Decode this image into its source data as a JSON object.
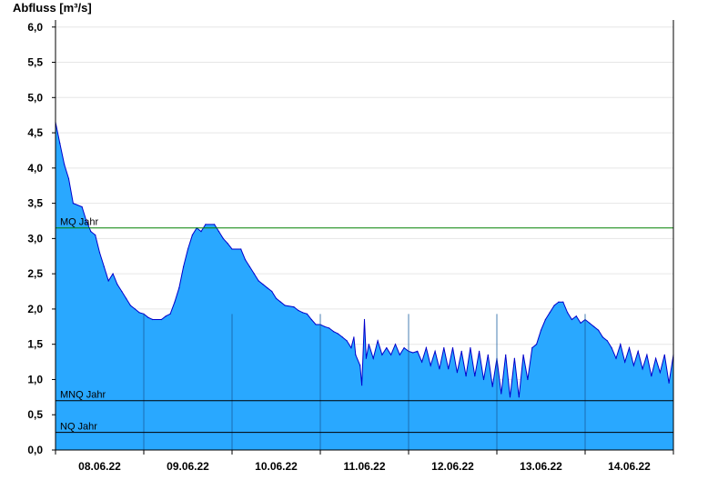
{
  "chart_data": {
    "type": "area",
    "ylabel": "Abfluss [m³/s]",
    "xlabel": "",
    "title": "",
    "ylim": [
      0,
      6.1
    ],
    "xlim": [
      0,
      7
    ],
    "grid": true,
    "yticks": [
      {
        "value": 0.0,
        "label": "0,0"
      },
      {
        "value": 0.5,
        "label": "0,5"
      },
      {
        "value": 1.0,
        "label": "1,0"
      },
      {
        "value": 1.5,
        "label": "1,5"
      },
      {
        "value": 2.0,
        "label": "2,0"
      },
      {
        "value": 2.5,
        "label": "2,5"
      },
      {
        "value": 3.0,
        "label": "3,0"
      },
      {
        "value": 3.5,
        "label": "3,5"
      },
      {
        "value": 4.0,
        "label": "4,0"
      },
      {
        "value": 4.5,
        "label": "4,5"
      },
      {
        "value": 5.0,
        "label": "5,0"
      },
      {
        "value": 5.5,
        "label": "5,5"
      },
      {
        "value": 6.0,
        "label": "6,0"
      }
    ],
    "xticks": [
      {
        "value": 0.5,
        "label": "08.06.22"
      },
      {
        "value": 1.5,
        "label": "09.06.22"
      },
      {
        "value": 2.5,
        "label": "10.06.22"
      },
      {
        "value": 3.5,
        "label": "11.06.22"
      },
      {
        "value": 4.5,
        "label": "12.06.22"
      },
      {
        "value": 5.5,
        "label": "13.06.22"
      },
      {
        "value": 6.5,
        "label": "14.06.22"
      }
    ],
    "day_dividers": [
      1,
      2,
      3,
      4,
      5,
      6
    ],
    "reference_lines": [
      {
        "name": "MQ Jahr",
        "value": 3.15,
        "color": "#008000"
      },
      {
        "name": "MNQ Jahr",
        "value": 0.7,
        "color": "#000000"
      },
      {
        "name": "NQ Jahr",
        "value": 0.25,
        "color": "#000000"
      }
    ],
    "series": [
      {
        "fill_color": "#29a8ff",
        "line_color": "#0000cc",
        "points": [
          [
            0.0,
            4.65
          ],
          [
            0.05,
            4.35
          ],
          [
            0.1,
            4.05
          ],
          [
            0.15,
            3.85
          ],
          [
            0.2,
            3.5
          ],
          [
            0.3,
            3.45
          ],
          [
            0.35,
            3.25
          ],
          [
            0.4,
            3.1
          ],
          [
            0.45,
            3.05
          ],
          [
            0.5,
            2.8
          ],
          [
            0.55,
            2.6
          ],
          [
            0.6,
            2.4
          ],
          [
            0.65,
            2.5
          ],
          [
            0.7,
            2.35
          ],
          [
            0.75,
            2.25
          ],
          [
            0.8,
            2.15
          ],
          [
            0.85,
            2.05
          ],
          [
            0.9,
            2.0
          ],
          [
            0.95,
            1.95
          ],
          [
            1.0,
            1.93
          ],
          [
            1.05,
            1.88
          ],
          [
            1.1,
            1.85
          ],
          [
            1.2,
            1.85
          ],
          [
            1.25,
            1.9
          ],
          [
            1.3,
            1.93
          ],
          [
            1.35,
            2.1
          ],
          [
            1.4,
            2.3
          ],
          [
            1.45,
            2.6
          ],
          [
            1.5,
            2.85
          ],
          [
            1.55,
            3.05
          ],
          [
            1.6,
            3.15
          ],
          [
            1.65,
            3.1
          ],
          [
            1.7,
            3.2
          ],
          [
            1.8,
            3.2
          ],
          [
            1.85,
            3.1
          ],
          [
            1.9,
            3.0
          ],
          [
            1.95,
            2.93
          ],
          [
            2.0,
            2.85
          ],
          [
            2.1,
            2.85
          ],
          [
            2.15,
            2.7
          ],
          [
            2.2,
            2.6
          ],
          [
            2.25,
            2.5
          ],
          [
            2.3,
            2.4
          ],
          [
            2.35,
            2.35
          ],
          [
            2.4,
            2.3
          ],
          [
            2.45,
            2.25
          ],
          [
            2.5,
            2.15
          ],
          [
            2.55,
            2.1
          ],
          [
            2.6,
            2.05
          ],
          [
            2.7,
            2.03
          ],
          [
            2.75,
            1.98
          ],
          [
            2.8,
            1.95
          ],
          [
            2.85,
            1.93
          ],
          [
            2.9,
            1.85
          ],
          [
            2.95,
            1.78
          ],
          [
            3.0,
            1.78
          ],
          [
            3.05,
            1.75
          ],
          [
            3.1,
            1.73
          ],
          [
            3.15,
            1.68
          ],
          [
            3.2,
            1.65
          ],
          [
            3.25,
            1.6
          ],
          [
            3.3,
            1.55
          ],
          [
            3.35,
            1.45
          ],
          [
            3.38,
            1.6
          ],
          [
            3.4,
            1.35
          ],
          [
            3.45,
            1.2
          ],
          [
            3.47,
            0.92
          ],
          [
            3.5,
            1.85
          ],
          [
            3.52,
            1.3
          ],
          [
            3.55,
            1.5
          ],
          [
            3.6,
            1.3
          ],
          [
            3.65,
            1.55
          ],
          [
            3.7,
            1.35
          ],
          [
            3.75,
            1.45
          ],
          [
            3.8,
            1.35
          ],
          [
            3.85,
            1.5
          ],
          [
            3.9,
            1.35
          ],
          [
            3.95,
            1.45
          ],
          [
            4.0,
            1.4
          ],
          [
            4.05,
            1.38
          ],
          [
            4.1,
            1.4
          ],
          [
            4.15,
            1.25
          ],
          [
            4.2,
            1.45
          ],
          [
            4.25,
            1.2
          ],
          [
            4.3,
            1.4
          ],
          [
            4.35,
            1.15
          ],
          [
            4.4,
            1.45
          ],
          [
            4.45,
            1.15
          ],
          [
            4.5,
            1.45
          ],
          [
            4.55,
            1.1
          ],
          [
            4.6,
            1.4
          ],
          [
            4.65,
            1.05
          ],
          [
            4.7,
            1.45
          ],
          [
            4.75,
            1.05
          ],
          [
            4.8,
            1.4
          ],
          [
            4.85,
            1.0
          ],
          [
            4.9,
            1.35
          ],
          [
            4.95,
            0.9
          ],
          [
            5.0,
            1.3
          ],
          [
            5.05,
            0.8
          ],
          [
            5.1,
            1.35
          ],
          [
            5.15,
            0.75
          ],
          [
            5.2,
            1.3
          ],
          [
            5.25,
            0.75
          ],
          [
            5.3,
            1.35
          ],
          [
            5.35,
            1.0
          ],
          [
            5.4,
            1.45
          ],
          [
            5.45,
            1.5
          ],
          [
            5.5,
            1.7
          ],
          [
            5.55,
            1.85
          ],
          [
            5.6,
            1.95
          ],
          [
            5.65,
            2.05
          ],
          [
            5.7,
            2.1
          ],
          [
            5.75,
            2.1
          ],
          [
            5.8,
            1.95
          ],
          [
            5.85,
            1.85
          ],
          [
            5.9,
            1.9
          ],
          [
            5.95,
            1.8
          ],
          [
            6.0,
            1.85
          ],
          [
            6.05,
            1.8
          ],
          [
            6.1,
            1.75
          ],
          [
            6.15,
            1.7
          ],
          [
            6.2,
            1.6
          ],
          [
            6.25,
            1.55
          ],
          [
            6.3,
            1.45
          ],
          [
            6.35,
            1.3
          ],
          [
            6.4,
            1.5
          ],
          [
            6.45,
            1.25
          ],
          [
            6.5,
            1.45
          ],
          [
            6.55,
            1.2
          ],
          [
            6.6,
            1.4
          ],
          [
            6.65,
            1.15
          ],
          [
            6.7,
            1.35
          ],
          [
            6.75,
            1.05
          ],
          [
            6.8,
            1.3
          ],
          [
            6.85,
            1.1
          ],
          [
            6.9,
            1.35
          ],
          [
            6.95,
            0.95
          ],
          [
            7.0,
            1.35
          ]
        ]
      }
    ]
  }
}
